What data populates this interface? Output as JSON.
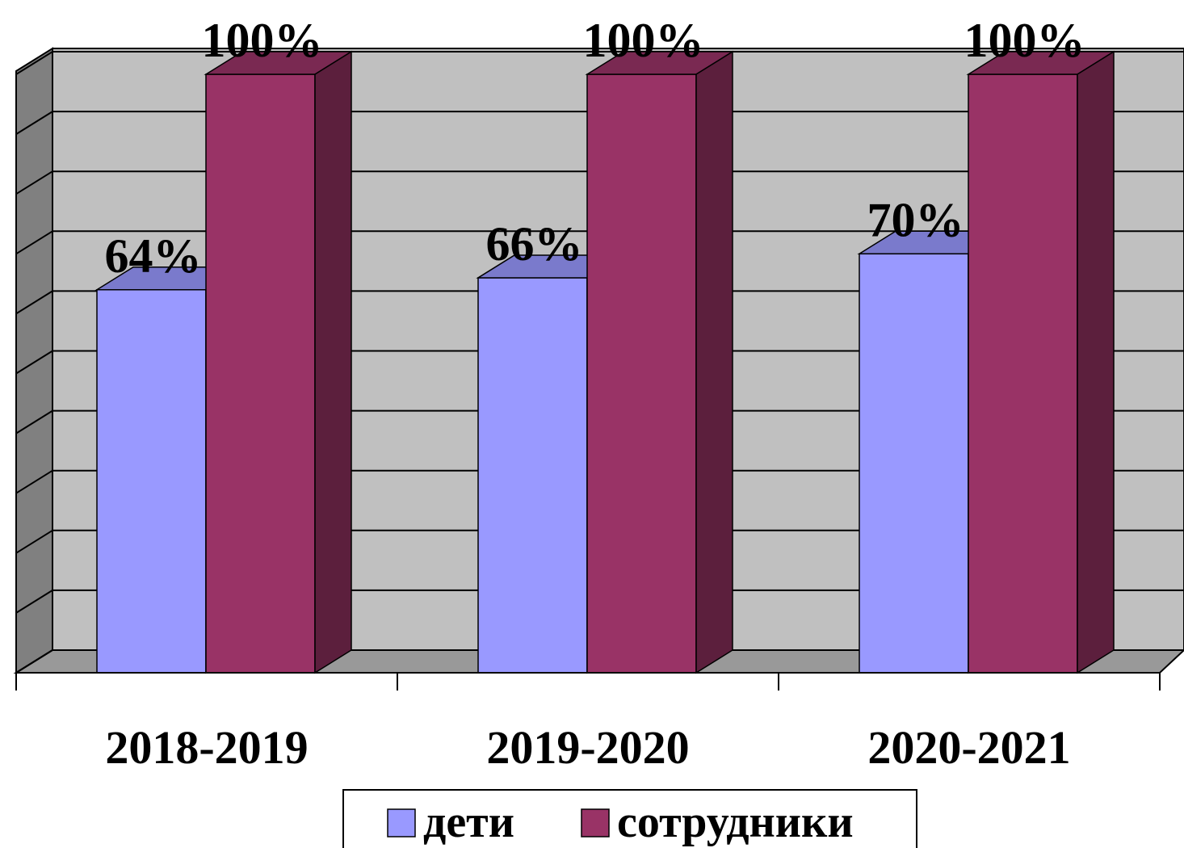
{
  "chart_data": {
    "type": "bar3d",
    "categories": [
      "2018-2019",
      "2019-2020",
      "2020-2021"
    ],
    "series": [
      {
        "name": "дети",
        "color": "#9999ff",
        "values": [
          64,
          66,
          70
        ],
        "value_labels": [
          "64%",
          "66%",
          "70%"
        ]
      },
      {
        "name": "сотрудники",
        "color": "#993366",
        "values": [
          100,
          100,
          100
        ],
        "value_labels": [
          "100%",
          "100%",
          "100%"
        ]
      }
    ],
    "ylim": [
      0,
      100
    ],
    "yticks": [
      0,
      10,
      20,
      30,
      40,
      50,
      60,
      70,
      80,
      90,
      100
    ],
    "grid": true,
    "legend": "bottom"
  }
}
